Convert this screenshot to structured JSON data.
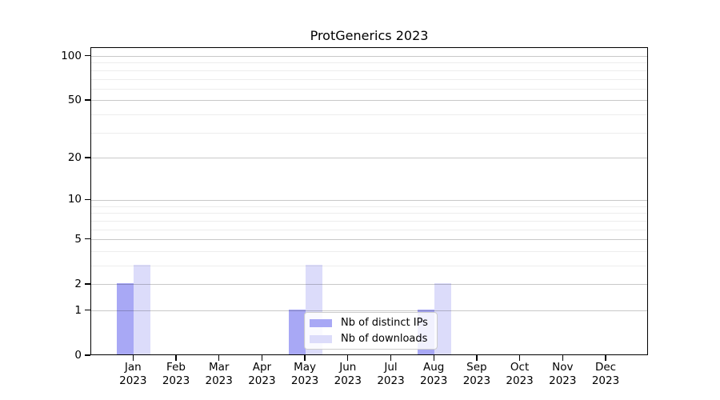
{
  "chart_data": {
    "type": "bar",
    "title": "ProtGenerics 2023",
    "xlabel": "",
    "ylabel": "",
    "categories": [
      "Jan 2023",
      "Feb 2023",
      "Mar 2023",
      "Apr 2023",
      "May 2023",
      "Jun 2023",
      "Jul 2023",
      "Aug 2023",
      "Sep 2023",
      "Oct 2023",
      "Nov 2023",
      "Dec 2023"
    ],
    "series": [
      {
        "name": "Nb of distinct IPs",
        "color": "#a8a8f5",
        "values": [
          2,
          0,
          0,
          0,
          1,
          0,
          0,
          1,
          0,
          0,
          0,
          0
        ]
      },
      {
        "name": "Nb of downloads",
        "color": "#dcdcfa",
        "values": [
          3,
          0,
          0,
          0,
          3,
          0,
          0,
          2,
          0,
          0,
          0,
          0
        ]
      }
    ],
    "y_scale": "log1p",
    "y_major_ticks": [
      0,
      1,
      2,
      5,
      10,
      20,
      50,
      100
    ],
    "y_minor_gridlines": [
      3,
      4,
      6,
      7,
      8,
      9,
      30,
      40,
      60,
      70,
      80,
      90
    ],
    "ylim": [
      0,
      114
    ],
    "grid": "horizontal",
    "legend_position": "lower-center-inside",
    "frame": "full-box",
    "axis_color": "#000000"
  }
}
